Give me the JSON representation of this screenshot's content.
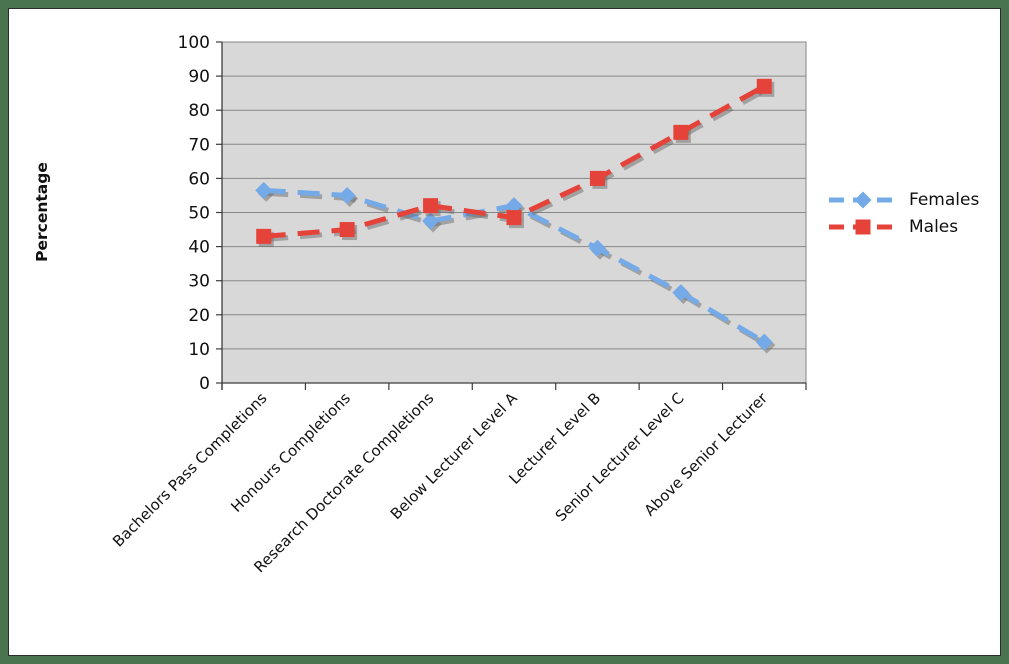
{
  "frame": {
    "outer_border_color": "#4a7350",
    "inner_line_color": "#2b2b2b",
    "background": "#ffffff"
  },
  "chart_data": {
    "type": "line",
    "title": "",
    "xlabel": "",
    "ylabel": "Percentage",
    "ylim": [
      0,
      100
    ],
    "ytick_step": 10,
    "yticks": [
      0,
      10,
      20,
      30,
      40,
      50,
      60,
      70,
      80,
      90,
      100
    ],
    "grid": true,
    "plot_bg": "#d8d8d8",
    "grid_color": "#878787",
    "axis_color": "#3c3c3c",
    "text_color": "#111111",
    "shadow_color": "rgba(105,105,105,0.5)",
    "categories": [
      "Bachelors Pass Completions",
      "Honours Completions",
      "Research Doctorate Completions",
      "Below Lecturer Level A",
      "Lecturer Level B",
      "Senior Lecturer Level C",
      "Above Senior Lecturer"
    ],
    "series": [
      {
        "name": "Females",
        "values": [
          56.5,
          55,
          47.5,
          52,
          39.5,
          26.5,
          12
        ],
        "color": "#74aae8",
        "marker": "diamond",
        "line_style": "dashed"
      },
      {
        "name": "Males",
        "values": [
          43,
          45,
          52,
          48.5,
          60,
          73.5,
          87
        ],
        "color": "#e5423a",
        "marker": "square",
        "line_style": "dashed"
      }
    ],
    "legend": {
      "position": "right",
      "entries": [
        "Females",
        "Males"
      ]
    }
  }
}
